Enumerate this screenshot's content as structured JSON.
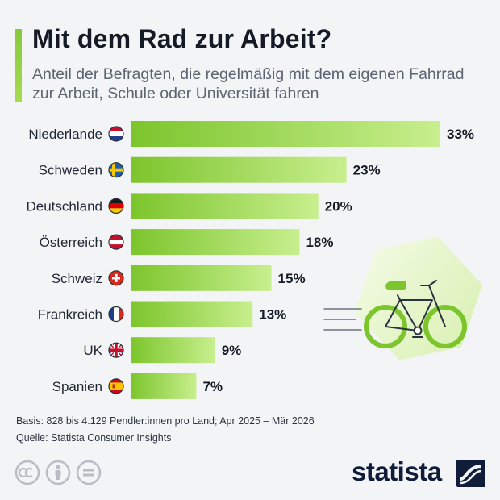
{
  "header": {
    "title": "Mit dem Rad zur Arbeit?",
    "subtitle": "Anteil der Befragten, die regelmäßig mit dem eigenen Fahrrad zur Arbeit, Schule oder Universität fahren"
  },
  "chart_data": {
    "type": "bar",
    "orientation": "horizontal",
    "categories": [
      "Niederlande",
      "Schweden",
      "Deutschland",
      "Österreich",
      "Schweiz",
      "Frankreich",
      "UK",
      "Spanien"
    ],
    "values": [
      33,
      23,
      20,
      18,
      15,
      13,
      9,
      7
    ],
    "value_labels": [
      "33%",
      "23%",
      "20%",
      "18%",
      "15%",
      "13%",
      "9%",
      "7%"
    ],
    "flags": [
      "netherlands-flag",
      "sweden-flag",
      "germany-flag",
      "austria-flag",
      "switzerland-flag",
      "france-flag",
      "uk-flag",
      "spain-flag"
    ],
    "unit": "%",
    "xlim": [
      0,
      33
    ],
    "grid": false,
    "bar_color_start": "#7cc52c",
    "bar_color_end": "#c8ef8e"
  },
  "footer": {
    "basis": "Basis: 828 bis 4.129 Pendler:innen pro Land; Apr 2025 – Mär 2026",
    "source": "Quelle: Statista Consumer Insights",
    "brand": "statista"
  },
  "colors": {
    "accent": "#8ccc3f",
    "brand": "#0f1c3a",
    "background": "#f3f4f6"
  },
  "icons": [
    "bicycle-icon",
    "speed-lines-icon",
    "cc-icon",
    "by-icon",
    "nd-icon",
    "statista-logo-icon"
  ]
}
